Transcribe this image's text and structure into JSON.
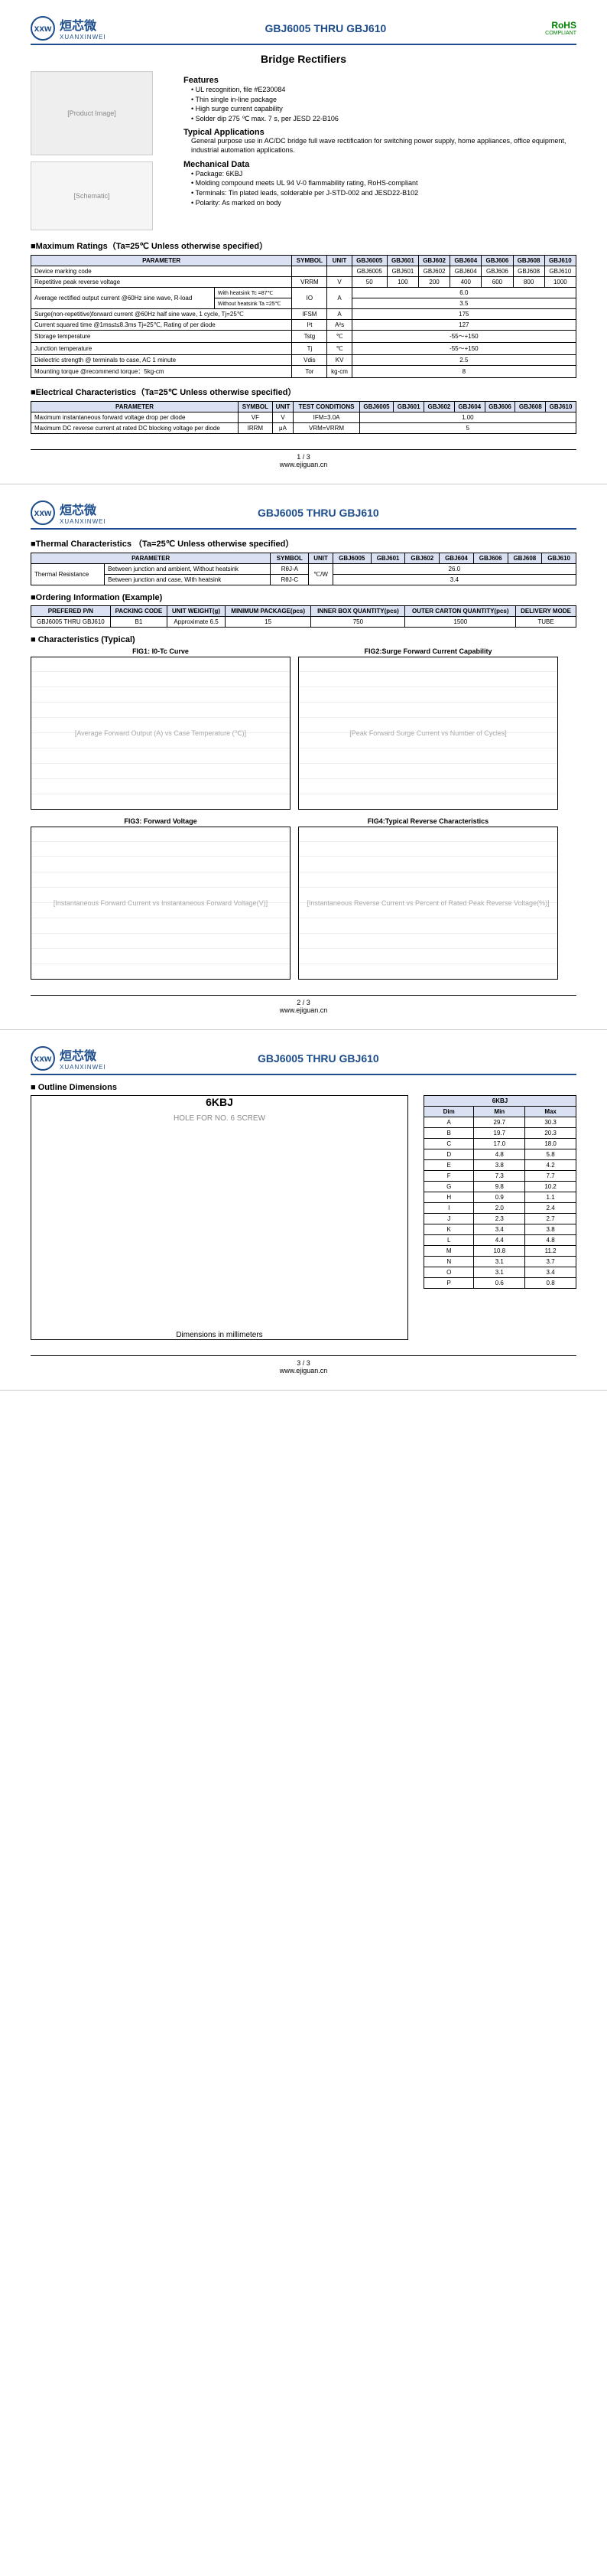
{
  "brand": {
    "cn": "烜芯微",
    "en": "XUANXINWEI",
    "logo_text": "xxw"
  },
  "title": "GBJ6005 THRU GBJ610",
  "rohs": {
    "label": "RoHS",
    "sub": "COMPLIANT"
  },
  "subtitle": "Bridge Rectifiers",
  "features_h": "Features",
  "features": [
    "UL recognition, file #E230084",
    "Thin single in-line package",
    "High surge current capability",
    "Solder dip 275 ℃ max. 7 s, per JESD 22-B106"
  ],
  "typical_h": "Typical Applications",
  "typical_text": "General purpose use in AC/DC bridge full wave rectification for switching power supply, home appliances, office equipment, industrial automation applications.",
  "mech_h": "Mechanical Data",
  "mech": [
    "Package: 6KBJ",
    "Molding compound meets UL 94 V-0 flammability rating, RoHS-compliant",
    "Terminals: Tin plated leads, solderable per J-STD-002 and JESD22-B102",
    "Polarity: As marked on body"
  ],
  "max_ratings_title": "■Maximum Ratings（Ta=25℃ Unless otherwise specified）",
  "parts": [
    "GBJ6005",
    "GBJ601",
    "GBJ602",
    "GBJ604",
    "GBJ606",
    "GBJ608",
    "GBJ610"
  ],
  "max_headers": [
    "PARAMETER",
    "SYMBOL",
    "UNIT"
  ],
  "max_rows": [
    {
      "p": "Device marking code",
      "s": "",
      "u": "",
      "vals": [
        "GBJ6005",
        "GBJ601",
        "GBJ602",
        "GBJ604",
        "GBJ606",
        "GBJ608",
        "GBJ610"
      ]
    },
    {
      "p": "Repetitive peak reverse voltage",
      "s": "VRRM",
      "u": "V",
      "vals": [
        "50",
        "100",
        "200",
        "400",
        "600",
        "800",
        "1000"
      ]
    },
    {
      "p": "Average rectified output current @60Hz sine wave, R-load",
      "sub": [
        {
          "c": "With heatsink Tc =87℃",
          "span": "6.0"
        },
        {
          "c": "Without heatsink Ta =25℃",
          "span": "3.5"
        }
      ],
      "s": "IO",
      "u": "A"
    },
    {
      "p": "Surge(non-repetitive)forward current @60Hz half sine wave, 1 cycle, Tj=25℃",
      "s": "IFSM",
      "u": "A",
      "span": "175"
    },
    {
      "p": "Current squared time @1ms≤t≤8.3ms Tj=25℃, Rating of per diode",
      "s": "I²t",
      "u": "A²s",
      "span": "127"
    },
    {
      "p": "Storage temperature",
      "s": "Tstg",
      "u": "℃",
      "span": "-55～+150"
    },
    {
      "p": "Junction temperature",
      "s": "Tj",
      "u": "℃",
      "span": "-55～+150"
    },
    {
      "p": "Dielectric strength @ terminals to case, AC 1 minute",
      "s": "Vdis",
      "u": "KV",
      "span": "2.5"
    },
    {
      "p": "Mounting torque @recommend torque：5kg-cm",
      "s": "Tor",
      "u": "kg-cm",
      "span": "8"
    }
  ],
  "elec_title": "■Electrical Characteristics（Ta=25℃ Unless otherwise specified）",
  "elec_headers": [
    "PARAMETER",
    "SYMBOL",
    "UNIT",
    "TEST CONDITIONS"
  ],
  "elec_rows": [
    {
      "p": "Maximum instantaneous forward voltage drop per diode",
      "s": "VF",
      "u": "V",
      "tc": "IFM=3.0A",
      "span": "1.00"
    },
    {
      "p": "Maximum DC reverse current at rated DC blocking voltage per diode",
      "s": "IRRM",
      "u": "μA",
      "tc": "VRM=VRRM",
      "span": "5"
    }
  ],
  "thermal_title": "■Thermal Characteristics （Ta=25℃ Unless otherwise specified）",
  "thermal_headers": [
    "PARAMETER",
    "",
    "SYMBOL",
    "UNIT"
  ],
  "thermal_rows": [
    {
      "p": "Thermal Resistance",
      "c": "Between junction and ambient, Without heatsink",
      "s": "RθJ-A",
      "u": "℃/W",
      "span": "26.0"
    },
    {
      "p": "",
      "c": "Between junction and case, With heatsink",
      "s": "RθJ-C",
      "u": "",
      "span": "3.4"
    }
  ],
  "order_title": "■Ordering Information (Example)",
  "order_headers": [
    "PREFERED P/N",
    "PACKING CODE",
    "UNIT WEIGHT(g)",
    "MINIMUM PACKAGE(pcs)",
    "INNER BOX QUANTITY(pcs)",
    "OUTER CARTON QUANTITY(pcs)",
    "DELIVERY MODE"
  ],
  "order_row": [
    "GBJ6005 THRU GBJ610",
    "B1",
    "Approximate 6.5",
    "15",
    "750",
    "1500",
    "TUBE"
  ],
  "char_title": "■ Characteristics (Typical)",
  "charts": [
    {
      "title": "FIG1: I0-Tc Curve",
      "xlabel": "Case Temperature (℃)",
      "ylabel": "Average Forward Output (A)",
      "xlim": [
        0,
        175
      ],
      "ylim": [
        0,
        8
      ]
    },
    {
      "title": "FIG2:Surge Forward Current Capability",
      "xlabel": "Number of Cycles",
      "ylabel": "Peak Forward Surge Current",
      "xlim": [
        1,
        100
      ],
      "ylim": [
        0,
        300
      ],
      "xscale": "log"
    },
    {
      "title": "FIG3: Forward Voltage",
      "xlabel": "Instantaneous Forward Voltage(V)",
      "ylabel": "Instantaneous Forward Current",
      "xlim": [
        0.1,
        1.4
      ],
      "ylim": [
        0,
        60
      ]
    },
    {
      "title": "FIG4:Typical Reverse Characteristics",
      "xlabel": "Percent of Rated Peak Reverse Voltage(%)",
      "ylabel": "Instantaneous Reverse Current",
      "xlim": [
        0,
        140
      ],
      "ylim": [
        0.001,
        100
      ],
      "yscale": "log"
    }
  ],
  "outline_title": "■ Outline Dimensions",
  "dim_package": "6KBJ",
  "dim_note": "Dimensions in millimeters",
  "dim_headers": [
    "Dim",
    "Min",
    "Max"
  ],
  "dim_rows": [
    [
      "A",
      "29.7",
      "30.3"
    ],
    [
      "B",
      "19.7",
      "20.3"
    ],
    [
      "C",
      "17.0",
      "18.0"
    ],
    [
      "D",
      "4.8",
      "5.8"
    ],
    [
      "E",
      "3.8",
      "4.2"
    ],
    [
      "F",
      "7.3",
      "7.7"
    ],
    [
      "G",
      "9.8",
      "10.2"
    ],
    [
      "H",
      "0.9",
      "1.1"
    ],
    [
      "I",
      "2.0",
      "2.4"
    ],
    [
      "J",
      "2.3",
      "2.7"
    ],
    [
      "K",
      "3.4",
      "3.8"
    ],
    [
      "L",
      "4.4",
      "4.8"
    ],
    [
      "M",
      "10.8",
      "11.2"
    ],
    [
      "N",
      "3.1",
      "3.7"
    ],
    [
      "O",
      "3.1",
      "3.4"
    ],
    [
      "P",
      "0.6",
      "0.8"
    ]
  ],
  "dim_hole_note": "HOLE FOR NO. 6 SCREW",
  "footer_url": "www.ejiguan.cn",
  "pages": [
    "1 / 3",
    "2 / 3",
    "3 / 3"
  ],
  "colors": {
    "header_bg": "#d9e1f2",
    "border": "#000",
    "brand": "#1e4d8b",
    "rohs": "#008000"
  }
}
